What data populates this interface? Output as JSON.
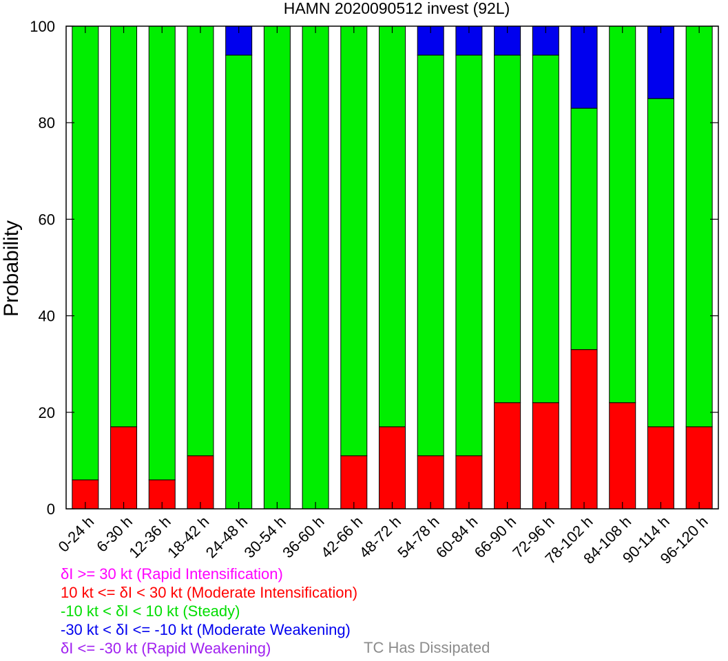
{
  "chart_data": {
    "type": "bar",
    "stacked": true,
    "title": "HAMN 2020090512 invest (92L)",
    "xlabel": "",
    "ylabel": "Probability",
    "ylim": [
      0,
      100
    ],
    "yticks": [
      "0",
      "20",
      "40",
      "60",
      "80",
      "100"
    ],
    "categories": [
      "0-24 h",
      "6-30 h",
      "12-36 h",
      "18-42 h",
      "24-48 h",
      "30-54 h",
      "36-60 h",
      "42-66 h",
      "48-72 h",
      "54-78 h",
      "60-84 h",
      "66-90 h",
      "72-96 h",
      "78-102 h",
      "84-108 h",
      "90-114 h",
      "96-120 h"
    ],
    "series": [
      {
        "key": "moderate_intensification",
        "color": "#ff0000",
        "values": [
          6,
          17,
          6,
          11,
          0,
          0,
          0,
          11,
          17,
          11,
          11,
          22,
          22,
          33,
          22,
          17,
          17
        ]
      },
      {
        "key": "steady",
        "color": "#00ee00",
        "values": [
          94,
          83,
          94,
          89,
          94,
          100,
          100,
          89,
          83,
          83,
          83,
          72,
          72,
          50,
          78,
          68,
          83
        ]
      },
      {
        "key": "moderate_weakening",
        "color": "#0000ee",
        "values": [
          0,
          0,
          0,
          0,
          6,
          0,
          0,
          0,
          0,
          6,
          6,
          6,
          6,
          17,
          0,
          15,
          0
        ]
      }
    ]
  },
  "legend": {
    "rapid_intensification": {
      "label": "δI >= 30 kt (Rapid Intensification)",
      "color": "#ff00ff"
    },
    "moderate_intensification": {
      "label": "10 kt <= δI < 30 kt (Moderate Intensification)",
      "color": "#ff0000"
    },
    "steady": {
      "label": "-10 kt < δI < 10 kt (Steady)",
      "color": "#00dd00"
    },
    "moderate_weakening": {
      "label": "-30 kt < δI <= -10 kt (Moderate Weakening)",
      "color": "#0000ee"
    },
    "rapid_weakening": {
      "label": "δI <= -30 kt (Rapid Weakening)",
      "color": "#a020f0"
    },
    "dissipated": {
      "label": "TC Has Dissipated",
      "color": "#8c8c8c"
    }
  }
}
